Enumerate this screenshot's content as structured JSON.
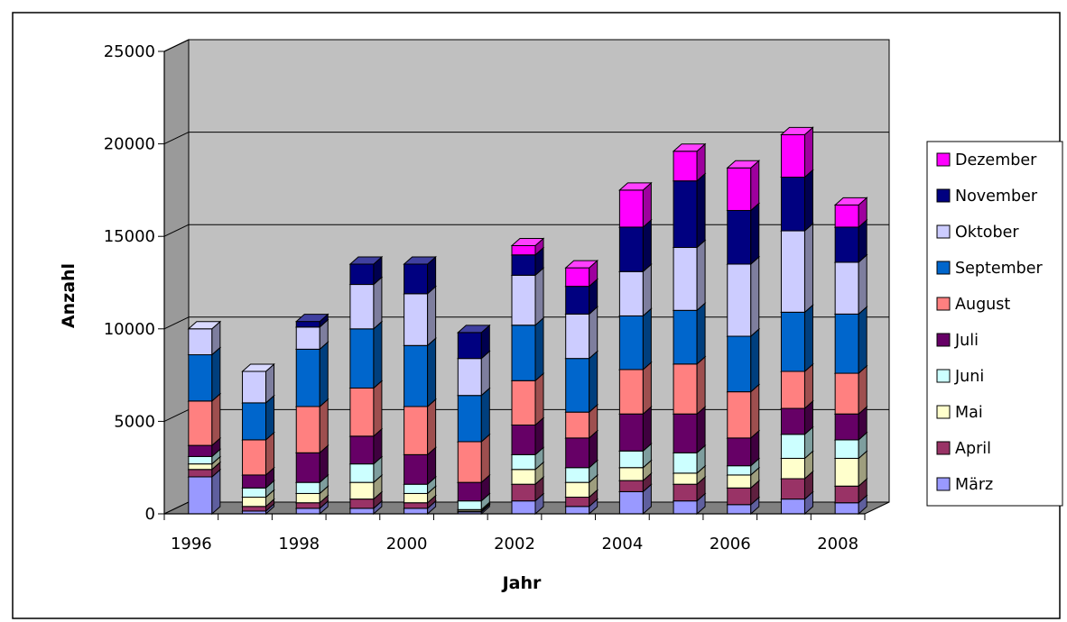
{
  "chart_data": {
    "type": "bar",
    "stacked": true,
    "three_d": true,
    "title": "",
    "xlabel": "Jahr",
    "ylabel": "Anzahl",
    "ylim": [
      0,
      25000
    ],
    "y_ticks": [
      0,
      5000,
      10000,
      15000,
      20000,
      25000
    ],
    "y_tick_labels": [
      "0",
      "5000",
      "10000",
      "15000",
      "20000",
      "25000"
    ],
    "x_tick_labels": [
      "1996",
      "1998",
      "2000",
      "2002",
      "2004",
      "2006",
      "2008"
    ],
    "grid": true,
    "legend_position": "right",
    "categories": [
      "1996",
      "1997",
      "1998",
      "1999",
      "2000",
      "2001",
      "2002",
      "2003",
      "2004",
      "2005",
      "2006",
      "2007",
      "2008"
    ],
    "series": [
      {
        "name": "März",
        "color": "#9999ff",
        "values": [
          2000,
          150,
          300,
          300,
          300,
          100,
          700,
          400,
          1200,
          700,
          500,
          800,
          600
        ]
      },
      {
        "name": "April",
        "color": "#993366",
        "values": [
          400,
          250,
          300,
          500,
          300,
          50,
          900,
          500,
          600,
          900,
          900,
          1100,
          900
        ]
      },
      {
        "name": "Mai",
        "color": "#ffffcc",
        "values": [
          300,
          500,
          500,
          900,
          500,
          80,
          800,
          800,
          700,
          600,
          700,
          1100,
          1500
        ]
      },
      {
        "name": "Juni",
        "color": "#ccffff",
        "values": [
          400,
          500,
          600,
          1000,
          500,
          470,
          800,
          800,
          900,
          1100,
          500,
          1300,
          1000
        ]
      },
      {
        "name": "Juli",
        "color": "#660066",
        "values": [
          600,
          700,
          1600,
          1500,
          1600,
          1000,
          1600,
          1600,
          2000,
          2100,
          1500,
          1400,
          1400
        ]
      },
      {
        "name": "August",
        "color": "#ff8080",
        "values": [
          2400,
          1900,
          2500,
          2600,
          2600,
          2200,
          2400,
          1400,
          2400,
          2700,
          2500,
          2000,
          2200
        ]
      },
      {
        "name": "September",
        "color": "#0066cc",
        "values": [
          2500,
          2000,
          3100,
          3200,
          3300,
          2500,
          3000,
          2900,
          2900,
          2900,
          3000,
          3200,
          3200
        ]
      },
      {
        "name": "Oktober",
        "color": "#ccccff",
        "values": [
          1400,
          1700,
          1200,
          2400,
          2800,
          2000,
          2700,
          2400,
          2400,
          3400,
          3900,
          4400,
          2800
        ]
      },
      {
        "name": "November",
        "color": "#000080",
        "values": [
          0,
          0,
          300,
          1100,
          1600,
          1400,
          1100,
          1500,
          2400,
          3600,
          2900,
          2900,
          1900
        ]
      },
      {
        "name": "Dezember",
        "color": "#ff00ff",
        "values": [
          0,
          0,
          0,
          0,
          0,
          0,
          500,
          1000,
          2000,
          1600,
          2300,
          2300,
          1200
        ]
      }
    ]
  }
}
